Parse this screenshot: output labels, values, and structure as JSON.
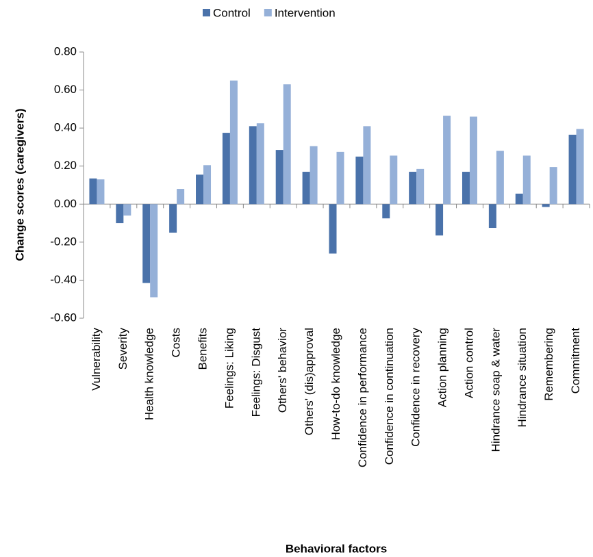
{
  "chart_data": {
    "type": "bar",
    "x_label": "Behavioral factors",
    "y_label": "Change scores (caregivers)",
    "categories": [
      "Vulnerability",
      "Severity",
      "Health knowledge",
      "Costs",
      "Benefits",
      "Feelings: Liking",
      "Feelings: Disgust",
      "Others' behavior",
      "Others' (dis)approval",
      "How-to-do knowledge",
      "Confidence in performance",
      "Confidence in continuation",
      "Confidence in recovery",
      "Action planning",
      "Action control",
      "Hindrance soap & water",
      "Hindrance situation",
      "Remembering",
      "Commitment"
    ],
    "series": [
      {
        "name": "Control",
        "color": "#4a72aa",
        "values": [
          0.135,
          -0.1,
          -0.415,
          -0.15,
          0.155,
          0.375,
          0.41,
          0.285,
          0.17,
          -0.26,
          0.25,
          -0.075,
          0.17,
          -0.165,
          0.17,
          -0.125,
          0.055,
          -0.015,
          0.365
        ]
      },
      {
        "name": "Intervention",
        "color": "#95b0d8",
        "values": [
          0.13,
          -0.06,
          -0.49,
          0.08,
          0.205,
          0.65,
          0.425,
          0.63,
          0.305,
          0.275,
          0.41,
          0.255,
          0.185,
          0.465,
          0.46,
          0.28,
          0.255,
          0.195,
          0.395
        ]
      }
    ],
    "ylim": [
      -0.6,
      0.8
    ],
    "yticks": [
      {
        "value": -0.6,
        "label": "-0.60"
      },
      {
        "value": -0.4,
        "label": "-0.40"
      },
      {
        "value": -0.2,
        "label": "-0.20"
      },
      {
        "value": 0,
        "label": "0.00"
      },
      {
        "value": 0.2,
        "label": "0.20"
      },
      {
        "value": 0.4,
        "label": "0.40"
      },
      {
        "value": 0.6,
        "label": "0.60"
      },
      {
        "value": 0.8,
        "label": "0.80"
      }
    ],
    "legend": "top",
    "grid": false
  }
}
